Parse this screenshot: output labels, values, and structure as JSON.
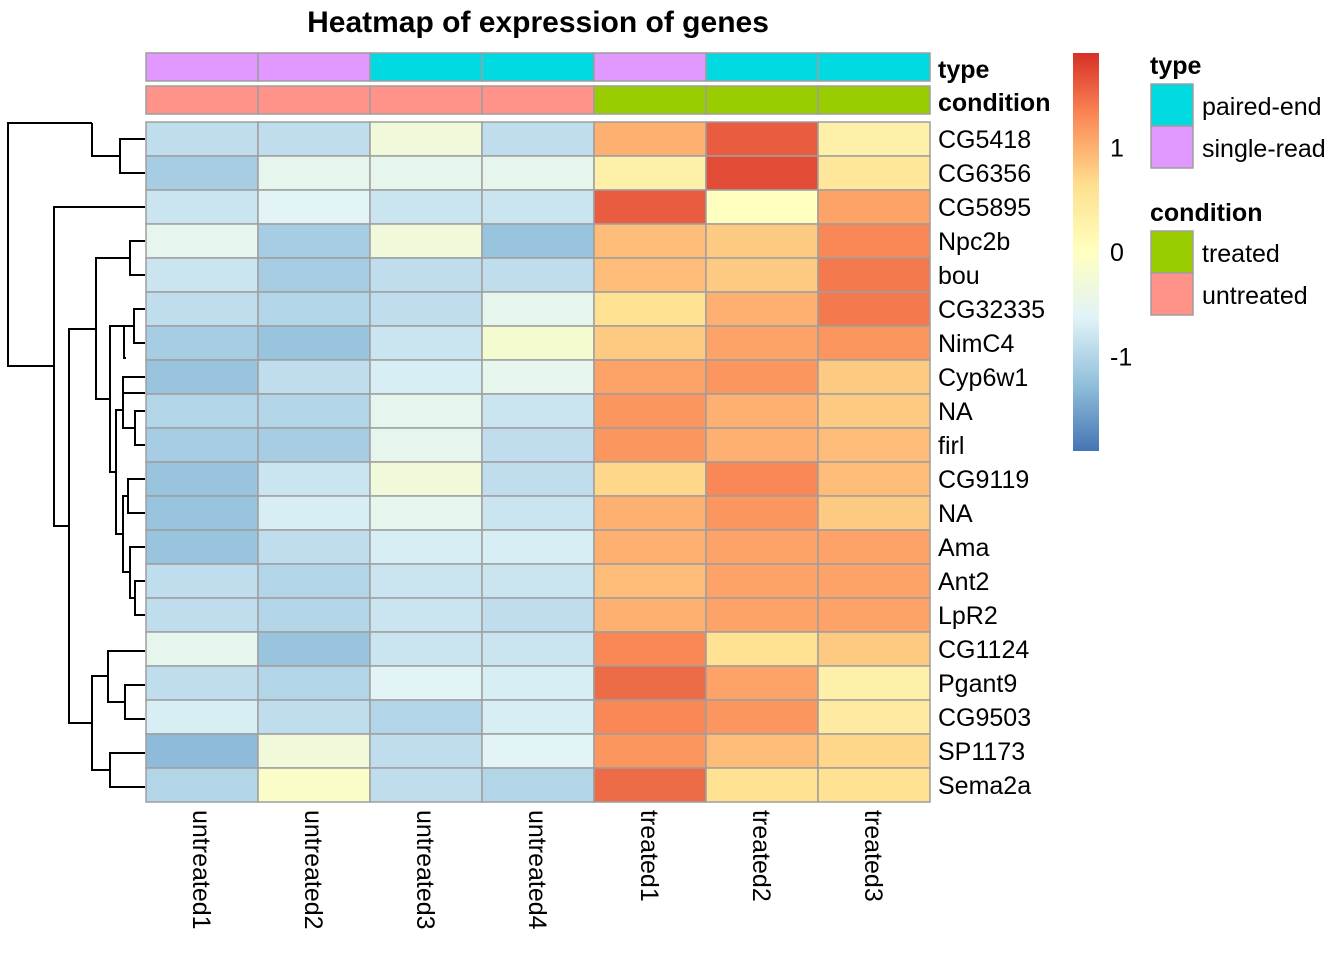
{
  "chart_data": {
    "type": "heatmap",
    "title": "Heatmap of expression of genes",
    "columns": [
      "untreated1",
      "untreated2",
      "untreated3",
      "untreated4",
      "treated1",
      "treated2",
      "treated3"
    ],
    "rows": [
      "CG5418",
      "CG6356",
      "CG5895",
      "Npc2b",
      "bou",
      "CG32335",
      "NimC4",
      "Cyp6w1",
      "NA",
      "firl",
      "CG9119",
      "NA",
      "Ama",
      "Ant2",
      "LpR2",
      "CG1124",
      "Pgant9",
      "CG9503",
      "SP1173",
      "Sema2a"
    ],
    "values": [
      [
        -0.9,
        -0.9,
        -0.3,
        -0.9,
        1.0,
        1.6,
        0.3
      ],
      [
        -1.1,
        -0.5,
        -0.5,
        -0.5,
        0.3,
        1.7,
        0.5
      ],
      [
        -0.8,
        -0.6,
        -0.8,
        -0.8,
        1.6,
        0.0,
        1.1
      ],
      [
        -0.5,
        -1.1,
        -0.3,
        -1.2,
        0.9,
        0.8,
        1.3
      ],
      [
        -0.8,
        -1.1,
        -0.9,
        -0.9,
        0.9,
        0.8,
        1.4
      ],
      [
        -0.9,
        -1.0,
        -0.9,
        -0.5,
        0.6,
        1.0,
        1.4
      ],
      [
        -1.1,
        -1.2,
        -0.8,
        -0.2,
        0.8,
        1.1,
        1.2
      ],
      [
        -1.2,
        -0.9,
        -0.7,
        -0.5,
        1.1,
        1.2,
        0.8
      ],
      [
        -1.0,
        -1.0,
        -0.5,
        -0.8,
        1.2,
        1.0,
        0.8
      ],
      [
        -1.1,
        -1.1,
        -0.5,
        -0.9,
        1.2,
        1.0,
        0.9
      ],
      [
        -1.2,
        -0.8,
        -0.3,
        -0.9,
        0.7,
        1.3,
        0.9
      ],
      [
        -1.2,
        -0.7,
        -0.5,
        -0.8,
        1.0,
        1.2,
        0.8
      ],
      [
        -1.2,
        -0.9,
        -0.7,
        -0.7,
        1.0,
        1.1,
        1.1
      ],
      [
        -0.9,
        -1.0,
        -0.8,
        -0.8,
        0.9,
        1.1,
        1.1
      ],
      [
        -0.9,
        -1.0,
        -0.8,
        -0.9,
        1.0,
        1.1,
        1.1
      ],
      [
        -0.5,
        -1.2,
        -0.8,
        -0.8,
        1.3,
        0.6,
        0.8
      ],
      [
        -0.9,
        -1.0,
        -0.6,
        -0.7,
        1.5,
        1.1,
        0.3
      ],
      [
        -0.7,
        -0.9,
        -1.0,
        -0.7,
        1.3,
        1.2,
        0.4
      ],
      [
        -1.3,
        -0.3,
        -0.9,
        -0.6,
        1.2,
        0.9,
        0.7
      ],
      [
        -1.0,
        -0.1,
        -0.9,
        -1.0,
        1.5,
        0.6,
        0.6
      ]
    ],
    "color_scale": {
      "min": -1.9,
      "max": 1.9,
      "colors": [
        "#4575B4",
        "#91BFDB",
        "#E0F3F8",
        "#FFFFBF",
        "#FEE090",
        "#FC8D59",
        "#D73027"
      ],
      "ticks": [
        1,
        0,
        -1
      ],
      "tick_labels": [
        "1",
        "0",
        "-1"
      ]
    },
    "annotation_tracks": [
      {
        "name": "type",
        "values": [
          "single-read",
          "single-read",
          "paired-end",
          "paired-end",
          "single-read",
          "paired-end",
          "paired-end"
        ]
      },
      {
        "name": "condition",
        "values": [
          "untreated",
          "untreated",
          "untreated",
          "untreated",
          "treated",
          "treated",
          "treated"
        ]
      }
    ],
    "annotation_colors": {
      "type": {
        "paired-end": "#00DAE0",
        "single-read": "#E199FF"
      },
      "condition": {
        "treated": "#99CC00",
        "untreated": "#FF9289"
      }
    },
    "legends": [
      {
        "title": "type",
        "items": [
          "paired-end",
          "single-read"
        ]
      },
      {
        "title": "condition",
        "items": [
          "treated",
          "untreated"
        ]
      }
    ],
    "row_dendrogram": true,
    "grid": false
  }
}
